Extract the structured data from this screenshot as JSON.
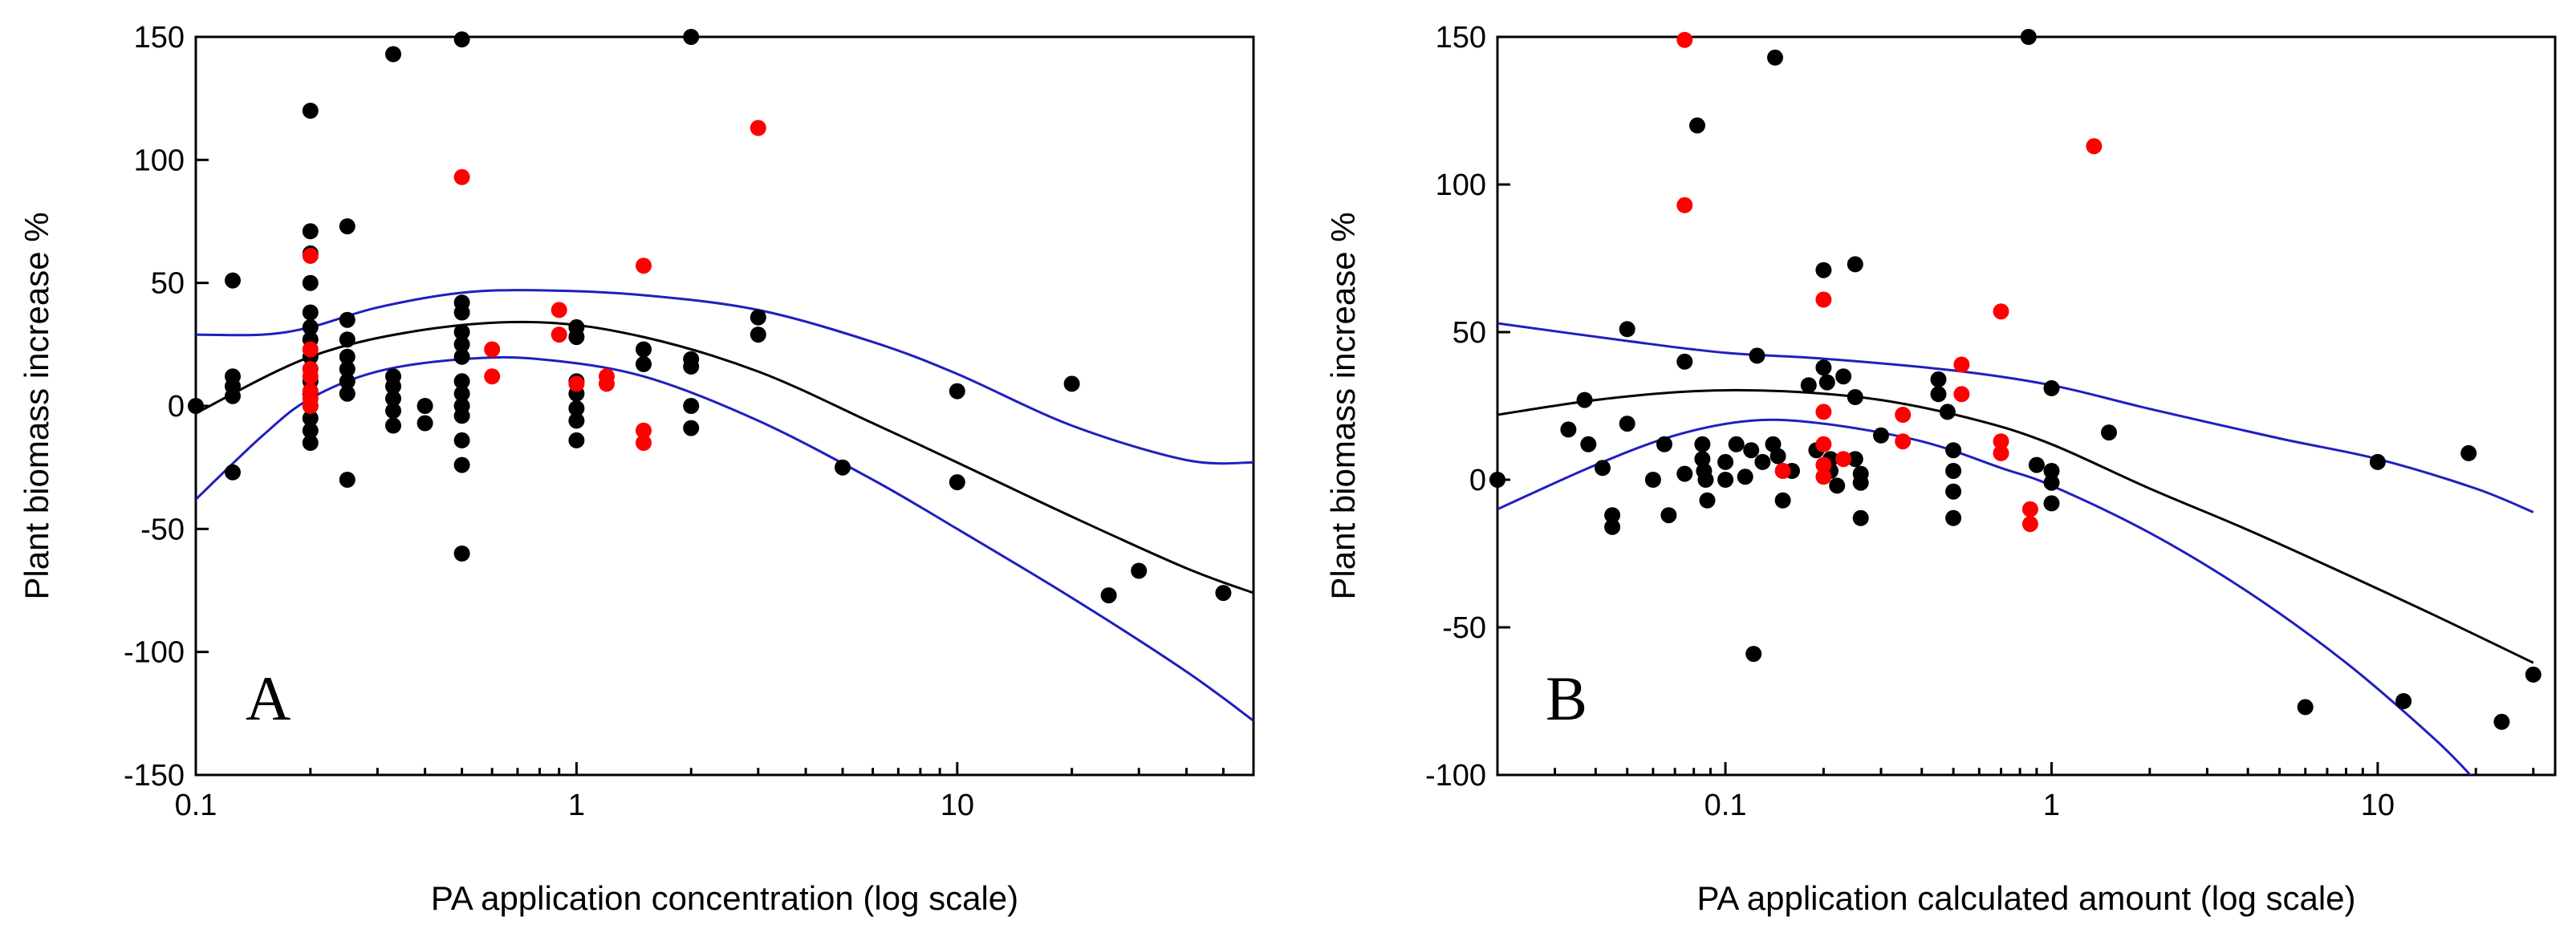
{
  "colors": {
    "point_black": "#000000",
    "point_red": "#ff0000",
    "fit_line": "#000000",
    "ci_line": "#1f1fbf"
  },
  "chart_data": [
    {
      "type": "scatter",
      "panel_label": "A",
      "xlabel": "PA application concentration (log scale)",
      "ylabel": "Plant biomass increase %",
      "xscale": "log",
      "xlim": [
        0.1,
        60
      ],
      "ylim": [
        -150,
        150
      ],
      "x_ticks": [
        0.1,
        1,
        10
      ],
      "x_tick_labels": [
        "0.1",
        "1",
        "10"
      ],
      "y_ticks": [
        -150,
        -100,
        -50,
        0,
        50,
        100,
        150
      ],
      "y_tick_labels": [
        "-150",
        "-100",
        "-50",
        "0",
        "50",
        "100",
        "150"
      ],
      "series": [
        {
          "name": "black points",
          "color": "#000000",
          "points": [
            [
              0.1,
              0
            ],
            [
              0.125,
              51
            ],
            [
              0.125,
              12
            ],
            [
              0.125,
              8
            ],
            [
              0.125,
              4
            ],
            [
              0.125,
              -27
            ],
            [
              0.2,
              120
            ],
            [
              0.2,
              71
            ],
            [
              0.2,
              62
            ],
            [
              0.2,
              50
            ],
            [
              0.2,
              38
            ],
            [
              0.2,
              32
            ],
            [
              0.2,
              27
            ],
            [
              0.2,
              20
            ],
            [
              0.2,
              15
            ],
            [
              0.2,
              10
            ],
            [
              0.2,
              5
            ],
            [
              0.2,
              0
            ],
            [
              0.2,
              -5
            ],
            [
              0.2,
              -10
            ],
            [
              0.2,
              -15
            ],
            [
              0.25,
              73
            ],
            [
              0.25,
              35
            ],
            [
              0.25,
              27
            ],
            [
              0.25,
              20
            ],
            [
              0.25,
              15
            ],
            [
              0.25,
              10
            ],
            [
              0.25,
              5
            ],
            [
              0.25,
              -30
            ],
            [
              0.33,
              143
            ],
            [
              0.33,
              12
            ],
            [
              0.33,
              8
            ],
            [
              0.33,
              3
            ],
            [
              0.33,
              -2
            ],
            [
              0.33,
              -8
            ],
            [
              0.4,
              0
            ],
            [
              0.4,
              -7
            ],
            [
              0.5,
              149
            ],
            [
              0.5,
              42
            ],
            [
              0.5,
              38
            ],
            [
              0.5,
              30
            ],
            [
              0.5,
              25
            ],
            [
              0.5,
              20
            ],
            [
              0.5,
              10
            ],
            [
              0.5,
              5
            ],
            [
              0.5,
              0
            ],
            [
              0.5,
              -4
            ],
            [
              0.5,
              -14
            ],
            [
              0.5,
              -24
            ],
            [
              0.5,
              -60
            ],
            [
              1.0,
              32
            ],
            [
              1.0,
              28
            ],
            [
              1.0,
              10
            ],
            [
              1.0,
              5
            ],
            [
              1.0,
              -1
            ],
            [
              1.0,
              -6
            ],
            [
              1.0,
              -14
            ],
            [
              1.5,
              23
            ],
            [
              1.5,
              17
            ],
            [
              2.0,
              150
            ],
            [
              2.0,
              19
            ],
            [
              2.0,
              16
            ],
            [
              2.0,
              0
            ],
            [
              2.0,
              -9
            ],
            [
              3.0,
              36
            ],
            [
              3.0,
              29
            ],
            [
              5.0,
              -25
            ],
            [
              10.0,
              6
            ],
            [
              10.0,
              -31
            ],
            [
              20.0,
              9
            ],
            [
              25.0,
              -77
            ],
            [
              30.0,
              -67
            ],
            [
              50.0,
              -76
            ]
          ]
        },
        {
          "name": "red points",
          "color": "#ff0000",
          "points": [
            [
              0.2,
              61
            ],
            [
              0.2,
              23
            ],
            [
              0.2,
              15
            ],
            [
              0.2,
              12
            ],
            [
              0.2,
              6
            ],
            [
              0.2,
              3
            ],
            [
              0.2,
              0
            ],
            [
              0.5,
              93
            ],
            [
              0.6,
              23
            ],
            [
              0.6,
              12
            ],
            [
              0.9,
              39
            ],
            [
              0.9,
              29
            ],
            [
              1.0,
              9
            ],
            [
              1.2,
              12
            ],
            [
              1.2,
              9
            ],
            [
              1.5,
              57
            ],
            [
              1.5,
              -10
            ],
            [
              1.5,
              -15
            ],
            [
              3.0,
              113
            ]
          ]
        }
      ],
      "fit": {
        "name": "quadratic fit",
        "color": "#000000",
        "points": [
          [
            0.1,
            -3
          ],
          [
            0.2,
            20
          ],
          [
            0.4,
            31
          ],
          [
            0.8,
            34
          ],
          [
            1.5,
            28
          ],
          [
            3,
            14
          ],
          [
            6,
            -7
          ],
          [
            10,
            -23
          ],
          [
            20,
            -45
          ],
          [
            40,
            -66
          ],
          [
            60,
            -76
          ]
        ]
      },
      "ci_upper": {
        "name": "upper confidence band",
        "color": "#1f1fbf",
        "points": [
          [
            0.1,
            29
          ],
          [
            0.15,
            29
          ],
          [
            0.2,
            32
          ],
          [
            0.3,
            40
          ],
          [
            0.5,
            46
          ],
          [
            0.8,
            47
          ],
          [
            1.5,
            45
          ],
          [
            3,
            39
          ],
          [
            6,
            26
          ],
          [
            10,
            13
          ],
          [
            20,
            -8
          ],
          [
            40,
            -22
          ],
          [
            60,
            -23
          ]
        ]
      },
      "ci_lower": {
        "name": "lower confidence band",
        "color": "#1f1fbf",
        "points": [
          [
            0.1,
            -38
          ],
          [
            0.15,
            -12
          ],
          [
            0.2,
            3
          ],
          [
            0.3,
            14
          ],
          [
            0.5,
            19
          ],
          [
            0.8,
            19
          ],
          [
            1.5,
            12
          ],
          [
            3,
            -6
          ],
          [
            6,
            -30
          ],
          [
            10,
            -50
          ],
          [
            20,
            -78
          ],
          [
            40,
            -108
          ],
          [
            60,
            -128
          ]
        ]
      }
    },
    {
      "type": "scatter",
      "panel_label": "B",
      "xlabel": "PA application calculated amount (log scale)",
      "ylabel": "Plant biomass increase %",
      "xscale": "log",
      "xlim": [
        0.02,
        35
      ],
      "ylim": [
        -100,
        150
      ],
      "x_ticks": [
        0.1,
        1,
        10
      ],
      "x_tick_labels": [
        "0.1",
        "1",
        "10"
      ],
      "y_ticks": [
        -100,
        -50,
        0,
        50,
        100,
        150
      ],
      "y_tick_labels": [
        "-100",
        "-50",
        "0",
        "50",
        "100",
        "150"
      ],
      "series": [
        {
          "name": "black points",
          "color": "#000000",
          "points": [
            [
              0.02,
              0
            ],
            [
              0.033,
              17
            ],
            [
              0.037,
              27
            ],
            [
              0.038,
              12
            ],
            [
              0.042,
              4
            ],
            [
              0.045,
              -12
            ],
            [
              0.045,
              -16
            ],
            [
              0.05,
              51
            ],
            [
              0.05,
              19
            ],
            [
              0.06,
              0
            ],
            [
              0.065,
              12
            ],
            [
              0.067,
              -12
            ],
            [
              0.075,
              2
            ],
            [
              0.075,
              40
            ],
            [
              0.082,
              120
            ],
            [
              0.085,
              12
            ],
            [
              0.085,
              7
            ],
            [
              0.086,
              3
            ],
            [
              0.087,
              0
            ],
            [
              0.088,
              -7
            ],
            [
              0.1,
              6
            ],
            [
              0.1,
              0
            ],
            [
              0.108,
              12
            ],
            [
              0.115,
              1
            ],
            [
              0.12,
              10
            ],
            [
              0.122,
              -59
            ],
            [
              0.125,
              42
            ],
            [
              0.13,
              6
            ],
            [
              0.14,
              12
            ],
            [
              0.142,
              143
            ],
            [
              0.145,
              8
            ],
            [
              0.15,
              -7
            ],
            [
              0.16,
              3
            ],
            [
              0.18,
              32
            ],
            [
              0.19,
              10
            ],
            [
              0.2,
              71
            ],
            [
              0.2,
              38
            ],
            [
              0.205,
              33
            ],
            [
              0.21,
              7
            ],
            [
              0.21,
              3
            ],
            [
              0.22,
              -2
            ],
            [
              0.23,
              35
            ],
            [
              0.25,
              73
            ],
            [
              0.25,
              28
            ],
            [
              0.25,
              7
            ],
            [
              0.26,
              2
            ],
            [
              0.26,
              -1
            ],
            [
              0.26,
              -13
            ],
            [
              0.3,
              15
            ],
            [
              0.45,
              34
            ],
            [
              0.45,
              29
            ],
            [
              0.48,
              23
            ],
            [
              0.5,
              10
            ],
            [
              0.5,
              3
            ],
            [
              0.5,
              -4
            ],
            [
              0.5,
              -13
            ],
            [
              0.85,
              150
            ],
            [
              0.9,
              5
            ],
            [
              1.0,
              31
            ],
            [
              1.0,
              3
            ],
            [
              1.0,
              -1
            ],
            [
              1.0,
              -8
            ],
            [
              1.5,
              16
            ],
            [
              6.0,
              -77
            ],
            [
              10.0,
              6
            ],
            [
              12.0,
              -75
            ],
            [
              19.0,
              9
            ],
            [
              24.0,
              -82
            ],
            [
              30.0,
              -66
            ]
          ]
        },
        {
          "name": "red points",
          "color": "#ff0000",
          "points": [
            [
              0.075,
              149
            ],
            [
              0.075,
              93
            ],
            [
              0.15,
              3
            ],
            [
              0.2,
              61
            ],
            [
              0.2,
              23
            ],
            [
              0.2,
              12
            ],
            [
              0.2,
              5
            ],
            [
              0.2,
              1
            ],
            [
              0.23,
              7
            ],
            [
              0.35,
              22
            ],
            [
              0.35,
              13
            ],
            [
              0.53,
              39
            ],
            [
              0.53,
              29
            ],
            [
              0.7,
              57
            ],
            [
              0.7,
              13
            ],
            [
              0.7,
              9
            ],
            [
              0.86,
              -10
            ],
            [
              0.86,
              -15
            ],
            [
              1.35,
              113
            ]
          ]
        }
      ],
      "fit": {
        "name": "quadratic fit",
        "color": "#000000",
        "points": [
          [
            0.02,
            22
          ],
          [
            0.04,
            27
          ],
          [
            0.08,
            30
          ],
          [
            0.15,
            30
          ],
          [
            0.3,
            27
          ],
          [
            0.6,
            20
          ],
          [
            1,
            12
          ],
          [
            2,
            -3
          ],
          [
            4,
            -17
          ],
          [
            8,
            -32
          ],
          [
            15,
            -46
          ],
          [
            30,
            -62
          ]
        ]
      },
      "ci_upper": {
        "name": "upper confidence band",
        "color": "#1f1fbf",
        "points": [
          [
            0.02,
            53
          ],
          [
            0.05,
            47
          ],
          [
            0.1,
            43
          ],
          [
            0.2,
            41
          ],
          [
            0.5,
            37
          ],
          [
            1,
            32
          ],
          [
            2,
            24
          ],
          [
            5,
            14
          ],
          [
            10,
            7
          ],
          [
            20,
            -3
          ],
          [
            30,
            -11
          ]
        ]
      },
      "ci_lower": {
        "name": "lower confidence band",
        "color": "#1f1fbf",
        "points": [
          [
            0.02,
            -10
          ],
          [
            0.04,
            5
          ],
          [
            0.07,
            15
          ],
          [
            0.12,
            20
          ],
          [
            0.2,
            19
          ],
          [
            0.4,
            13
          ],
          [
            0.7,
            4
          ],
          [
            1,
            -2
          ],
          [
            2,
            -18
          ],
          [
            4,
            -38
          ],
          [
            8,
            -62
          ],
          [
            15,
            -88
          ],
          [
            20,
            -102
          ]
        ]
      }
    }
  ]
}
